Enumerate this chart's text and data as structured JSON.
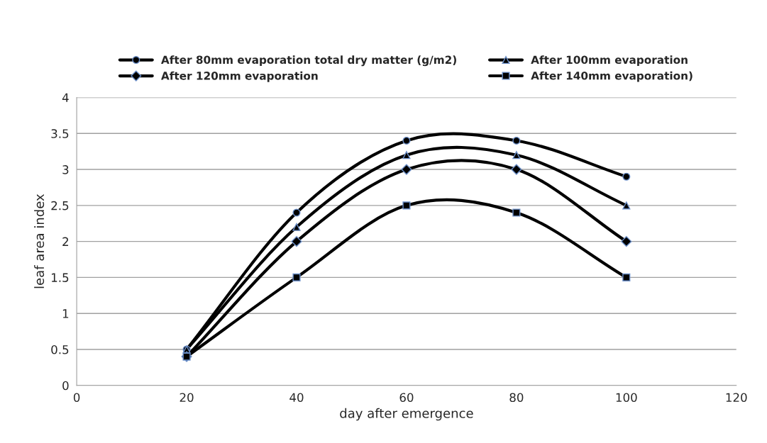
{
  "chart_data": {
    "type": "line",
    "xlabel": "day after emergence",
    "ylabel": "leaf area index",
    "x": [
      20,
      40,
      60,
      80,
      100
    ],
    "series": [
      {
        "name": "After 80mm evaporation total dry matter (g/m2)",
        "color": "#000000",
        "marker": "circle",
        "values": [
          0.5,
          2.4,
          3.4,
          3.4,
          2.9
        ]
      },
      {
        "name": "After 100mm evaporation",
        "color": "#000000",
        "marker": "triangle",
        "values": [
          0.5,
          2.2,
          3.2,
          3.2,
          2.5
        ]
      },
      {
        "name": "After 120mm evaporation",
        "color": "#000000",
        "marker": "diamond",
        "values": [
          0.4,
          2.0,
          3.0,
          3.0,
          2.0
        ]
      },
      {
        "name": "After 140mm evaporation)",
        "color": "#000000",
        "marker": "square",
        "values": [
          0.4,
          1.5,
          2.5,
          2.4,
          1.5
        ]
      }
    ],
    "xlim": [
      0,
      120
    ],
    "xticks": [
      0,
      20,
      40,
      60,
      80,
      100,
      120
    ],
    "ylim": [
      0,
      4
    ],
    "yticks": [
      0,
      0.5,
      1,
      1.5,
      2,
      2.5,
      3,
      3.5,
      4
    ],
    "grid": "y",
    "legend": "top",
    "line_style": "solid"
  }
}
